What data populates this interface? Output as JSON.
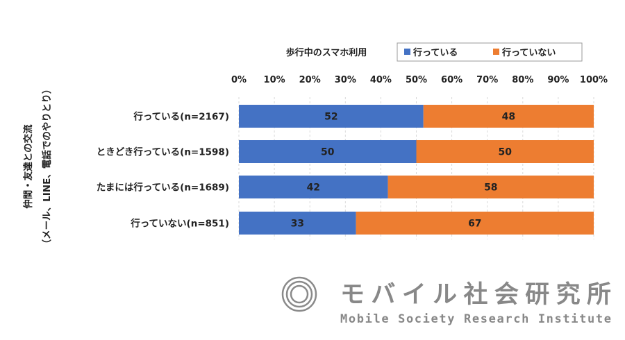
{
  "chart_data": {
    "type": "bar",
    "stacked": true,
    "orientation": "horizontal",
    "legend_title": "歩行中のスマホ利用",
    "legend_position": "top",
    "ylabel_lines": [
      "仲間・友達との交流",
      "（メール、LINE、電話でのやりとり）"
    ],
    "categories": [
      "行っている(n=2167)",
      "ときどき行っている(n=1598)",
      "たまには行っている(n=1689)",
      "行っていない(n=851)"
    ],
    "series": [
      {
        "name": "行っている",
        "color": "#4472C4",
        "values": [
          52,
          50,
          42,
          33
        ]
      },
      {
        "name": "行っていない",
        "color": "#ED7D31",
        "values": [
          48,
          50,
          58,
          67
        ]
      }
    ],
    "xlim": [
      0,
      100
    ],
    "xticks": [
      "0%",
      "10%",
      "20%",
      "30%",
      "40%",
      "50%",
      "60%",
      "70%",
      "80%",
      "90%",
      "100%"
    ],
    "grid": "vertical dashed"
  },
  "logo": {
    "name_ja": "モバイル社会研究所",
    "name_en": "Mobile Society Research Institute"
  }
}
